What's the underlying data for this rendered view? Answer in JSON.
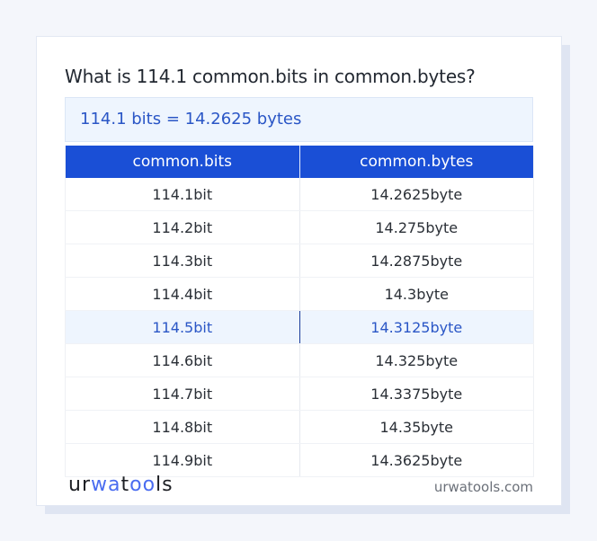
{
  "title": "What is 114.1 common.bits in common.bytes?",
  "result": "114.1 bits = 14.2625 bytes",
  "table": {
    "headers": [
      "common.bits",
      "common.bytes"
    ],
    "highlight_index": 4,
    "rows": [
      [
        "114.1bit",
        "14.2625byte"
      ],
      [
        "114.2bit",
        "14.275byte"
      ],
      [
        "114.3bit",
        "14.2875byte"
      ],
      [
        "114.4bit",
        "14.3byte"
      ],
      [
        "114.5bit",
        "14.3125byte"
      ],
      [
        "114.6bit",
        "14.325byte"
      ],
      [
        "114.7bit",
        "14.3375byte"
      ],
      [
        "114.8bit",
        "14.35byte"
      ],
      [
        "114.9bit",
        "14.3625byte"
      ]
    ]
  },
  "footer": {
    "logo": "urwatools",
    "site": "urwatools.com"
  },
  "colors": {
    "accent": "#1a4fd6",
    "highlight_bg": "#eef5fe",
    "highlight_text": "#2a56c6"
  }
}
